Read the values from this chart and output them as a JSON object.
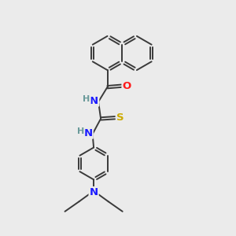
{
  "bg_color": "#ebebeb",
  "bond_color": "#3a3a3a",
  "atom_colors": {
    "N": "#1a1aff",
    "O": "#ff1a1a",
    "S": "#ccaa00",
    "H": "#6a9a9a"
  },
  "lw": 1.4,
  "dbo": 0.055,
  "fs": 9.5
}
